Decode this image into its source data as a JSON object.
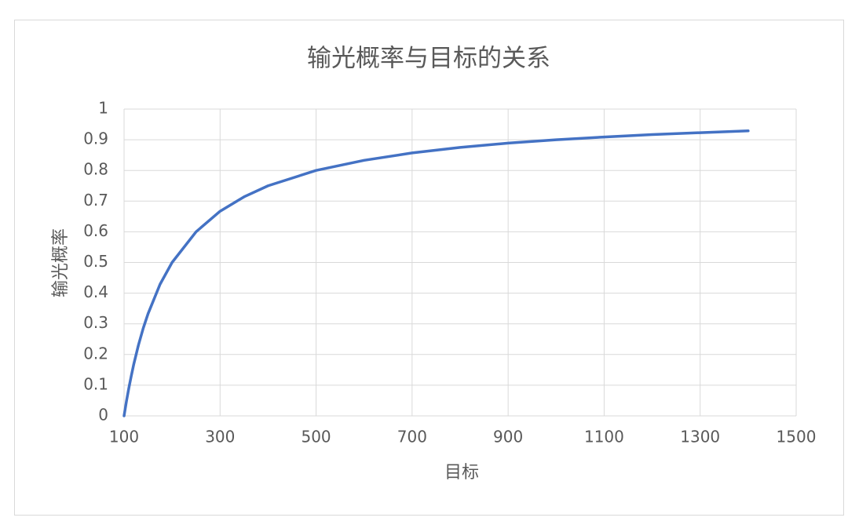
{
  "chart_data": {
    "type": "line",
    "title": "输光概率与目标的关系",
    "x_label": "目标",
    "y_label": "输光概率",
    "x": [
      100,
      105,
      110,
      115,
      120,
      130,
      140,
      150,
      175,
      200,
      250,
      300,
      350,
      400,
      500,
      600,
      700,
      800,
      900,
      1000,
      1100,
      1200,
      1300,
      1400
    ],
    "series": [
      {
        "name": "输光概率",
        "color": "#4472c4",
        "values": [
          0,
          0.048,
          0.091,
          0.13,
          0.167,
          0.231,
          0.286,
          0.333,
          0.429,
          0.5,
          0.6,
          0.667,
          0.714,
          0.75,
          0.8,
          0.833,
          0.857,
          0.875,
          0.889,
          0.9,
          0.909,
          0.917,
          0.923,
          0.929
        ]
      }
    ],
    "xlim": [
      100,
      1500
    ],
    "xticks": [
      100,
      300,
      500,
      700,
      900,
      1100,
      1300,
      1500
    ],
    "ylim": [
      0,
      1
    ],
    "yticks": [
      0,
      0.1,
      0.2,
      0.3,
      0.4,
      0.5,
      0.6,
      0.7,
      0.8,
      0.9,
      1
    ],
    "grid": true
  }
}
